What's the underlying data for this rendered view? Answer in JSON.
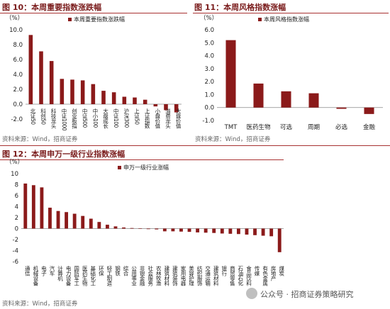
{
  "charts": [
    {
      "id": "fig10",
      "title": "图 10：本周重要指数涨跌幅",
      "source": "资料来源：Wind，招商证券",
      "chart_data": {
        "type": "bar",
        "unit_label": "（%）",
        "legend": "本周重要指数涨跌幅",
        "legend_position": "top",
        "categories": [
          "北证50",
          "科创50",
          "科技龙头",
          "中证1000",
          "创业板指",
          "中证500",
          "中小100",
          "大盘成长",
          "中证100",
          "沪深300",
          "上证50",
          "上证指数",
          "小盘价值",
          "消费龙头",
          "大盘价值"
        ],
        "values": [
          9.3,
          7.1,
          5.8,
          3.4,
          3.3,
          3.2,
          2.7,
          1.8,
          1.6,
          1.0,
          0.9,
          0.6,
          -0.3,
          -0.8,
          -1.1
        ],
        "ylim": [
          -2,
          10
        ],
        "yticks": [
          "-2.0",
          "0.0",
          "2.0",
          "4.0",
          "6.0",
          "8.0",
          "10.0"
        ],
        "color": "#8b1a1a"
      }
    },
    {
      "id": "fig11",
      "title": "图 11：本周风格指数涨幅",
      "source": "资料来源：Wind，招商证券",
      "chart_data": {
        "type": "bar",
        "unit_label": "（%）",
        "legend": "本周风格指数涨幅",
        "legend_position": "top",
        "categories": [
          "TMT",
          "医药生物",
          "可选",
          "周期",
          "必选",
          "金融"
        ],
        "values": [
          5.2,
          1.85,
          1.25,
          1.1,
          -0.1,
          -0.5
        ],
        "ylim": [
          -1,
          6
        ],
        "yticks": [
          "-1.0",
          "0.0",
          "1.0",
          "2.0",
          "3.0",
          "4.0",
          "5.0",
          "6.0"
        ],
        "color": "#8b1a1a"
      }
    },
    {
      "id": "fig12",
      "title": "图 12：本周申万一级行业指数涨幅",
      "source": "资料来源：Wind，招商证券",
      "chart_data": {
        "type": "bar",
        "unit_label": "（%）",
        "legend": "申万一级行业涨幅",
        "legend_position": "top",
        "categories": [
          "通信",
          "机械设备",
          "电子",
          "汽车",
          "计算机",
          "电力设备",
          "国防军工",
          "医药生物",
          "基础化工",
          "环保",
          "轻工制造",
          "钢铁",
          "综合",
          "公用事业",
          "非银金融",
          "社会服务",
          "农林牧渔",
          "建筑材料",
          "建筑装饰",
          "家用电器",
          "美容护理",
          "纺织服饰",
          "交通运输",
          "建筑材料",
          "银行",
          "商贸零售",
          "石油石化",
          "食品饮料",
          "传媒",
          "有色金属",
          "房地产",
          "煤炭"
        ],
        "values": [
          8.2,
          7.9,
          7.5,
          3.8,
          3.2,
          3.0,
          2.7,
          2.3,
          1.8,
          1.2,
          0.7,
          0.4,
          0.2,
          0.1,
          0.05,
          -0.1,
          -0.15,
          -0.5,
          -0.5,
          -0.55,
          -0.6,
          -0.7,
          -0.75,
          -0.8,
          -0.9,
          -0.95,
          -1.0,
          -1.1,
          -1.2,
          -1.3,
          -1.4,
          -4.3
        ],
        "ylim": [
          -6,
          10
        ],
        "yticks": [
          "-6",
          "-4",
          "-2",
          "0",
          "2",
          "4",
          "6",
          "8",
          "10"
        ],
        "color": "#8b1a1a"
      }
    }
  ],
  "watermark": {
    "text": "公众号 · 招商证券策略研究"
  }
}
